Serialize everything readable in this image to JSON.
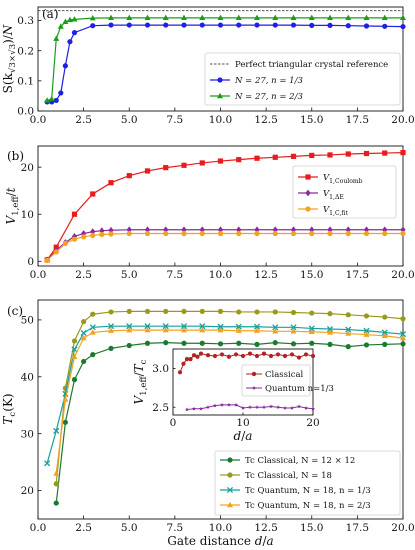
{
  "chart_data": [
    {
      "type": "line",
      "panel_label": "(a)",
      "ylabel": "S(k√3×√3)/N",
      "xlabel": "",
      "xlim": [
        0,
        20
      ],
      "ylim": [
        0,
        0.345
      ],
      "x_ticks": [
        "0.0",
        "2.5",
        "5.0",
        "7.5",
        "10.0",
        "12.5",
        "15.0",
        "17.5",
        "20.0"
      ],
      "y_ticks": [
        "0.0",
        "0.1",
        "0.2",
        "0.3"
      ],
      "legend_position": "lower right",
      "reference_line": {
        "name": "Perfect triangular crystal reference",
        "y": 0.333,
        "color": "#555555"
      },
      "series": [
        {
          "name": "N = 27, n = 1/3",
          "color": "#1f1fe6",
          "marker": "circle",
          "x": [
            0.5,
            0.75,
            1.0,
            1.25,
            1.5,
            1.75,
            2.0,
            3.0,
            4.0,
            5.0,
            6.0,
            7.0,
            8.0,
            9.0,
            10.0,
            11.0,
            12.0,
            13.0,
            14.0,
            15.0,
            16.0,
            17.0,
            18.0,
            19.0,
            20.0
          ],
          "y": [
            0.03,
            0.03,
            0.035,
            0.06,
            0.15,
            0.23,
            0.26,
            0.283,
            0.285,
            0.285,
            0.285,
            0.285,
            0.285,
            0.285,
            0.285,
            0.285,
            0.285,
            0.285,
            0.285,
            0.284,
            0.284,
            0.283,
            0.282,
            0.281,
            0.28
          ]
        },
        {
          "name": "N = 27, n = 2/3",
          "color": "#1a9e1a",
          "marker": "triangle",
          "x": [
            0.5,
            0.75,
            1.0,
            1.25,
            1.5,
            1.75,
            2.0,
            3.0,
            4.0,
            5.0,
            6.0,
            7.0,
            8.0,
            9.0,
            10.0,
            11.0,
            12.0,
            13.0,
            14.0,
            15.0,
            16.0,
            17.0,
            18.0,
            19.0,
            20.0
          ],
          "y": [
            0.035,
            0.04,
            0.24,
            0.28,
            0.296,
            0.302,
            0.304,
            0.308,
            0.309,
            0.309,
            0.309,
            0.309,
            0.309,
            0.309,
            0.309,
            0.309,
            0.309,
            0.309,
            0.309,
            0.309,
            0.309,
            0.309,
            0.309,
            0.309,
            0.309
          ]
        }
      ]
    },
    {
      "type": "line",
      "panel_label": "(b)",
      "ylabel": "V1,eff/t",
      "xlabel": "",
      "xlim": [
        0,
        20
      ],
      "ylim": [
        -1,
        24.5
      ],
      "x_ticks": [
        "0.0",
        "2.5",
        "5.0",
        "7.5",
        "10.0",
        "12.5",
        "15.0",
        "17.5",
        "20.0"
      ],
      "y_ticks": [
        "0",
        "10",
        "20"
      ],
      "legend_position": "center right",
      "series": [
        {
          "name": "V1,Coulomb",
          "color": "#e81c1c",
          "marker": "square",
          "x": [
            0.5,
            1.0,
            2.0,
            3.0,
            4.0,
            5.0,
            6.0,
            7.0,
            8.0,
            9.0,
            10.0,
            11.0,
            12.0,
            13.0,
            14.0,
            15.0,
            16.0,
            17.0,
            18.0,
            19.0,
            20.0
          ],
          "y": [
            0.3,
            3.0,
            10.0,
            14.3,
            16.7,
            18.2,
            19.2,
            19.9,
            20.4,
            20.9,
            21.3,
            21.6,
            21.9,
            22.1,
            22.3,
            22.5,
            22.6,
            22.8,
            22.9,
            23.0,
            23.1
          ]
        },
        {
          "name": "V1,ΔE",
          "color": "#8b2a9e",
          "marker": "diamond",
          "x": [
            0.5,
            1.0,
            1.5,
            2.0,
            2.5,
            3.0,
            3.5,
            4.0,
            5.0,
            6.0,
            7.0,
            8.0,
            9.0,
            10.0,
            11.0,
            12.0,
            13.0,
            14.0,
            15.0,
            16.0,
            17.0,
            18.0,
            19.0,
            20.0
          ],
          "y": [
            0.3,
            2.3,
            4.0,
            5.3,
            5.9,
            6.3,
            6.5,
            6.6,
            6.7,
            6.7,
            6.7,
            6.7,
            6.7,
            6.7,
            6.7,
            6.7,
            6.7,
            6.7,
            6.7,
            6.7,
            6.7,
            6.7,
            6.7,
            6.7
          ]
        },
        {
          "name": "V1,C,fit",
          "color": "#f5a21b",
          "marker": "circle",
          "x": [
            0.5,
            1.0,
            1.5,
            2.0,
            2.5,
            3.0,
            3.5,
            4.0,
            5.0,
            6.0,
            7.0,
            8.0,
            9.0,
            10.0,
            11.0,
            12.0,
            13.0,
            14.0,
            15.0,
            16.0,
            17.0,
            18.0,
            19.0,
            20.0
          ],
          "y": [
            0.2,
            2.0,
            3.8,
            4.7,
            5.2,
            5.5,
            5.7,
            5.8,
            5.9,
            5.9,
            5.9,
            5.9,
            5.9,
            5.9,
            5.9,
            5.9,
            5.9,
            5.9,
            5.9,
            5.9,
            5.9,
            5.9,
            5.9,
            5.9
          ]
        }
      ]
    },
    {
      "type": "line",
      "panel_label": "(c)",
      "ylabel": "Tc(K)",
      "xlabel": "Gate distance d/a",
      "xlim": [
        0,
        20
      ],
      "ylim": [
        15,
        53.5
      ],
      "x_ticks": [
        "0.0",
        "2.5",
        "5.0",
        "7.5",
        "10.0",
        "12.5",
        "15.0",
        "17.5",
        "20.0"
      ],
      "y_ticks": [
        "20",
        "30",
        "40",
        "50"
      ],
      "legend_position": "lower right",
      "series": [
        {
          "name": "Tc Classical, N = 12 × 12",
          "color": "#1b7a2e",
          "marker": "circle",
          "x": [
            1.0,
            1.5,
            2.0,
            2.5,
            3.0,
            4.0,
            5.0,
            6.0,
            7.0,
            8.0,
            9.0,
            10.0,
            11.0,
            12.0,
            13.0,
            14.0,
            15.0,
            16.0,
            17.0,
            18.0,
            19.0,
            20.0
          ],
          "y": [
            17.8,
            32.0,
            39.5,
            42.7,
            43.9,
            45.0,
            45.5,
            45.9,
            46.0,
            45.9,
            45.9,
            45.8,
            45.9,
            45.7,
            46.0,
            45.8,
            45.9,
            45.7,
            45.3,
            45.6,
            45.7,
            45.8
          ]
        },
        {
          "name": "Tc Classical, N = 18",
          "color": "#9a9a1a",
          "marker": "circle",
          "x": [
            1.0,
            1.5,
            2.0,
            2.5,
            3.0,
            4.0,
            5.0,
            6.0,
            7.0,
            8.0,
            9.0,
            10.0,
            11.0,
            12.0,
            13.0,
            14.0,
            15.0,
            16.0,
            17.0,
            18.0,
            19.0,
            20.0
          ],
          "y": [
            21.2,
            38.0,
            46.3,
            49.7,
            51.0,
            51.4,
            51.5,
            51.5,
            51.5,
            51.5,
            51.5,
            51.5,
            51.4,
            51.4,
            51.4,
            51.3,
            51.2,
            51.1,
            50.9,
            50.7,
            50.5,
            50.2
          ]
        },
        {
          "name": "Tc Quantum, N = 18, n = 1/3",
          "color": "#1a9e9e",
          "marker": "x",
          "x": [
            0.5,
            1.0,
            1.5,
            2.0,
            2.5,
            3.0,
            4.0,
            5.0,
            6.0,
            7.0,
            8.0,
            9.0,
            10.0,
            11.0,
            12.0,
            13.0,
            14.0,
            15.0,
            16.0,
            17.0,
            18.0,
            19.0,
            20.0
          ],
          "y": [
            24.8,
            30.5,
            37.0,
            44.8,
            47.7,
            48.7,
            48.9,
            48.9,
            48.9,
            48.9,
            48.9,
            48.9,
            48.8,
            48.8,
            48.8,
            48.7,
            48.7,
            48.5,
            48.4,
            48.3,
            48.1,
            47.8,
            47.5
          ]
        },
        {
          "name": "Tc Quantum, N = 18, n = 2/3",
          "color": "#f5a21b",
          "marker": "triangle",
          "x": [
            1.0,
            1.5,
            2.0,
            2.5,
            3.0,
            4.0,
            5.0,
            6.0,
            7.0,
            8.0,
            9.0,
            10.0,
            11.0,
            12.0,
            13.0,
            14.0,
            15.0,
            16.0,
            17.0,
            18.0,
            19.0,
            20.0
          ],
          "y": [
            23.0,
            36.0,
            43.5,
            46.8,
            47.8,
            48.1,
            48.2,
            48.2,
            48.2,
            48.2,
            48.2,
            48.2,
            48.1,
            48.1,
            48.0,
            48.0,
            47.9,
            47.8,
            47.6,
            47.4,
            47.2,
            46.8
          ]
        }
      ],
      "inset": {
        "type": "line",
        "xlabel": "d/a",
        "ylabel": "V1,eff/Tc",
        "xlim": [
          0,
          20
        ],
        "ylim": [
          2.4,
          3.25
        ],
        "x_ticks": [
          "0",
          "10",
          "20"
        ],
        "y_ticks": [
          "2.5",
          "3.0"
        ],
        "legend_position": "center right",
        "series": [
          {
            "name": "Classical",
            "color": "#b22222",
            "marker": "circle",
            "x": [
              1.0,
              1.5,
              2.0,
              2.5,
              3.0,
              3.5,
              4.0,
              5.0,
              6.0,
              7.0,
              8.0,
              9.0,
              10.0,
              11.0,
              12.0,
              13.0,
              14.0,
              15.0,
              16.0,
              17.0,
              18.0,
              19.0,
              20.0
            ],
            "y": [
              2.95,
              3.06,
              3.12,
              3.12,
              3.17,
              3.15,
              3.19,
              3.17,
              3.16,
              3.18,
              3.15,
              3.18,
              3.16,
              3.19,
              3.16,
              3.19,
              3.16,
              3.18,
              3.16,
              3.18,
              3.14,
              3.18,
              3.16
            ]
          },
          {
            "name": "Quantum n=1/3",
            "color": "#8b2a9e",
            "marker": "star",
            "x": [
              2.0,
              3.0,
              4.0,
              5.0,
              6.0,
              7.0,
              8.0,
              9.0,
              10.0,
              11.0,
              12.0,
              13.0,
              14.0,
              15.0,
              16.0,
              17.0,
              18.0,
              19.0,
              20.0
            ],
            "y": [
              2.47,
              2.48,
              2.48,
              2.5,
              2.52,
              2.53,
              2.53,
              2.53,
              2.49,
              2.5,
              2.5,
              2.5,
              2.51,
              2.5,
              2.49,
              2.49,
              2.51,
              2.49,
              2.48
            ]
          }
        ]
      }
    }
  ]
}
